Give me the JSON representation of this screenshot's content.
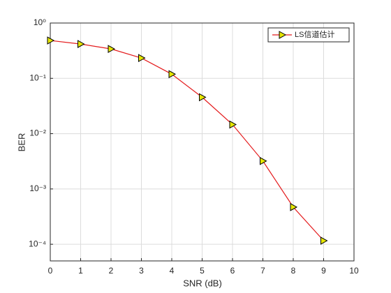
{
  "chart_data": {
    "type": "line",
    "log_y": true,
    "grid": true,
    "xlabel": "SNR (dB)",
    "ylabel": "BER",
    "x": [
      0,
      1,
      2,
      3,
      4,
      5,
      6,
      7,
      8,
      9
    ],
    "series": [
      {
        "name": "LS信道估计",
        "color": "#e41a1c",
        "marker_color": "#e6e600",
        "values": [
          0.483,
          0.417,
          0.34,
          0.233,
          0.119,
          0.0455,
          0.0146,
          0.0032,
          0.00047,
          0.000116
        ]
      }
    ],
    "xlim": [
      0,
      10
    ],
    "xticks": [
      0,
      1,
      2,
      3,
      4,
      5,
      6,
      7,
      8,
      9,
      10
    ],
    "ylim": [
      5e-05,
      1
    ],
    "yticks": [
      {
        "value": 0.0001,
        "label": "10⁻⁴"
      },
      {
        "value": 0.001,
        "label": "10⁻³"
      },
      {
        "value": 0.01,
        "label": "10⁻²"
      },
      {
        "value": 0.1,
        "label": "10⁻¹"
      },
      {
        "value": 1,
        "label": "10⁰"
      }
    ],
    "legend": "top-right"
  }
}
